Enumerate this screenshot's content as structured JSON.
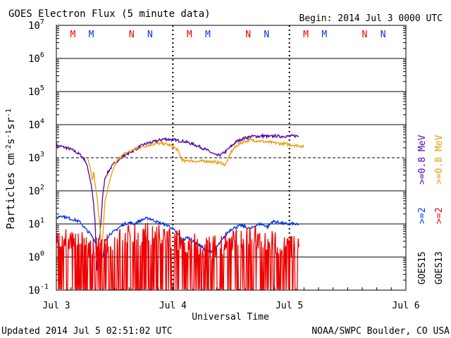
{
  "header": {
    "title": "GOES Electron Flux (5 minute data)",
    "begin": "Begin: 2014 Jul 3 0000 UTC"
  },
  "footer": {
    "updated": "Updated 2014 Jul  5 02:51:02 UTC",
    "credit": "NOAA/SWPC Boulder, CO USA"
  },
  "colors": {
    "goes15_high": "#5500aa",
    "goes13_high": "#ee9900",
    "goes15_low": "#0033ee",
    "goes13_low": "#ee0000",
    "marker_m": "#ee0000",
    "marker_n": "#0033ee"
  },
  "legend": {
    "goes15_label": "GOES15",
    "goes13_label": "GOES13",
    "goes15_high_label": ">=0.8 MeV",
    "goes13_high_label": ">=0.8 MeV",
    "goes15_low_label": ">=2",
    "goes13_low_label": ">=2",
    "position": "right"
  },
  "chart_data": {
    "type": "line",
    "title": "GOES Electron Flux (5 minute data)",
    "xlabel": "Universal Time",
    "ylabel": "Particles cm-2s-1sr-1",
    "ylabel_parts": [
      "Particles cm",
      "-2",
      "s",
      "-1",
      "sr",
      "-1"
    ],
    "x_unit": "hours since 2014 Jul 3 0000 UTC",
    "xlim": [
      0,
      72
    ],
    "x_ticks": [
      {
        "value": 0,
        "label": "Jul 3"
      },
      {
        "value": 24,
        "label": "Jul 4"
      },
      {
        "value": 48,
        "label": "Jul 5"
      },
      {
        "value": 72,
        "label": "Jul 6"
      }
    ],
    "yscale": "log",
    "ylim_exponent": [
      -1,
      7
    ],
    "y_ticks": [
      {
        "exp": -1,
        "base": "10",
        "sup": "-1"
      },
      {
        "exp": 0,
        "base": "10",
        "sup": "0"
      },
      {
        "exp": 1,
        "base": "10",
        "sup": "1"
      },
      {
        "exp": 2,
        "base": "10",
        "sup": "2"
      },
      {
        "exp": 3,
        "base": "10",
        "sup": "3"
      },
      {
        "exp": 4,
        "base": "10",
        "sup": "4"
      },
      {
        "exp": 5,
        "base": "10",
        "sup": "5"
      },
      {
        "exp": 6,
        "base": "10",
        "sup": "6"
      },
      {
        "exp": 7,
        "base": "10",
        "sup": "7"
      }
    ],
    "grid": true,
    "threshold": {
      "value": 1000,
      "style": "dashed"
    },
    "day_boundaries": [
      24,
      48
    ],
    "markers": [
      {
        "label": "M",
        "hour": 3.4,
        "color": "#ee0000"
      },
      {
        "label": "M",
        "hour": 7.2,
        "color": "#0033ee"
      },
      {
        "label": "N",
        "hour": 15.5,
        "color": "#ee0000"
      },
      {
        "label": "N",
        "hour": 19.3,
        "color": "#0033ee"
      },
      {
        "label": "M",
        "hour": 27.4,
        "color": "#ee0000"
      },
      {
        "label": "M",
        "hour": 31.2,
        "color": "#0033ee"
      },
      {
        "label": "N",
        "hour": 39.5,
        "color": "#ee0000"
      },
      {
        "label": "N",
        "hour": 43.3,
        "color": "#0033ee"
      },
      {
        "label": "M",
        "hour": 51.4,
        "color": "#ee0000"
      },
      {
        "label": "M",
        "hour": 55.2,
        "color": "#0033ee"
      },
      {
        "label": "N",
        "hour": 63.5,
        "color": "#ee0000"
      },
      {
        "label": "N",
        "hour": 67.3,
        "color": "#0033ee"
      }
    ],
    "series": [
      {
        "name": "GOES15 >=0.8 MeV",
        "color": "#5500aa",
        "style": "line",
        "points": [
          [
            0,
            2300
          ],
          [
            1,
            2200
          ],
          [
            2,
            2000
          ],
          [
            3,
            1800
          ],
          [
            4,
            1500
          ],
          [
            5,
            1200
          ],
          [
            6,
            800
          ],
          [
            6.6,
            400
          ],
          [
            7.2,
            150
          ],
          [
            7.6,
            50
          ],
          [
            8,
            10
          ],
          [
            8.3,
            0.3
          ],
          [
            8.6,
            2
          ],
          [
            9,
            5
          ],
          [
            9.5,
            60
          ],
          [
            10,
            250
          ],
          [
            11,
            450
          ],
          [
            12,
            700
          ],
          [
            13,
            900
          ],
          [
            14,
            1200
          ],
          [
            15,
            1400
          ],
          [
            16,
            1700
          ],
          [
            17,
            2100
          ],
          [
            18,
            2500
          ],
          [
            19,
            2800
          ],
          [
            20,
            3000
          ],
          [
            21,
            3300
          ],
          [
            22,
            3700
          ],
          [
            23,
            3600
          ],
          [
            24,
            3500
          ],
          [
            25,
            3300
          ],
          [
            26,
            3200
          ],
          [
            27,
            2900
          ],
          [
            28,
            2600
          ],
          [
            29,
            2300
          ],
          [
            30,
            2000
          ],
          [
            31,
            1700
          ],
          [
            32,
            1400
          ],
          [
            33,
            1150
          ],
          [
            34,
            1250
          ],
          [
            35,
            1600
          ],
          [
            36,
            2200
          ],
          [
            37,
            3000
          ],
          [
            38,
            3600
          ],
          [
            39,
            4000
          ],
          [
            40,
            4300
          ],
          [
            41,
            4500
          ],
          [
            42,
            4400
          ],
          [
            42.5,
            4600
          ],
          [
            44,
            4300
          ],
          [
            45,
            4600
          ],
          [
            46,
            4400
          ],
          [
            47,
            4500
          ],
          [
            48,
            4400
          ],
          [
            49,
            4600
          ],
          [
            50,
            4500
          ]
        ]
      },
      {
        "name": "GOES13 >=0.8 MeV",
        "color": "#ee9900",
        "style": "line",
        "points": [
          [
            6.5,
            1000
          ],
          [
            7,
            500
          ],
          [
            7.4,
            220
          ],
          [
            7.7,
            350
          ],
          [
            8,
            150
          ],
          [
            8.4,
            60
          ],
          [
            8.7,
            20
          ],
          [
            9,
            8
          ],
          [
            9.2,
            2
          ],
          [
            9.4,
            2
          ],
          [
            9.6,
            5
          ],
          [
            10,
            50
          ],
          [
            11,
            200
          ],
          [
            12,
            600
          ],
          [
            13,
            1000
          ],
          [
            14,
            1300
          ],
          [
            15,
            1500
          ],
          [
            16,
            1800
          ],
          [
            17,
            2000
          ],
          [
            18,
            2200
          ],
          [
            19,
            2400
          ],
          [
            20,
            2600
          ],
          [
            21,
            2700
          ],
          [
            22,
            2700
          ],
          [
            23,
            2500
          ],
          [
            24,
            2200
          ],
          [
            25,
            1700
          ],
          [
            25.8,
            900
          ],
          [
            26.5,
            750
          ],
          [
            27,
            850
          ],
          [
            28,
            800
          ],
          [
            29,
            770
          ],
          [
            30,
            780
          ],
          [
            31,
            800
          ],
          [
            32,
            750
          ],
          [
            33,
            730
          ],
          [
            34,
            700
          ],
          [
            34.8,
            600
          ],
          [
            35.5,
            1000
          ],
          [
            36,
            1500
          ],
          [
            37,
            2200
          ],
          [
            38,
            2800
          ],
          [
            39,
            3200
          ],
          [
            40,
            3400
          ],
          [
            41,
            3300
          ],
          [
            42,
            3200
          ],
          [
            43,
            3000
          ],
          [
            44,
            2900
          ],
          [
            45,
            2800
          ],
          [
            46,
            2700
          ],
          [
            47,
            2600
          ],
          [
            48,
            2500
          ],
          [
            49,
            2400
          ],
          [
            50,
            2300
          ],
          [
            51,
            2200
          ]
        ]
      },
      {
        "name": "GOES15 >=2 MeV",
        "color": "#0033ee",
        "style": "line",
        "points": [
          [
            0,
            15
          ],
          [
            1,
            18
          ],
          [
            2,
            16
          ],
          [
            3,
            14
          ],
          [
            4,
            13
          ],
          [
            5,
            11
          ],
          [
            6,
            7
          ],
          [
            7,
            5
          ],
          [
            8,
            3
          ],
          [
            9,
            0.6
          ],
          [
            9.6,
            1
          ],
          [
            10,
            3
          ],
          [
            11,
            5
          ],
          [
            12,
            6
          ],
          [
            13,
            8
          ],
          [
            14,
            10
          ],
          [
            15,
            11
          ],
          [
            16,
            10
          ],
          [
            17,
            12
          ],
          [
            18,
            14
          ],
          [
            19,
            15
          ],
          [
            20,
            13
          ],
          [
            21,
            11
          ],
          [
            22,
            10
          ],
          [
            23,
            9
          ],
          [
            24,
            7
          ],
          [
            25,
            5
          ],
          [
            26,
            3
          ],
          [
            27,
            4
          ],
          [
            28,
            3
          ],
          [
            29,
            2.5
          ],
          [
            30,
            2
          ],
          [
            31,
            1.5
          ],
          [
            32,
            1.5
          ],
          [
            33,
            2
          ],
          [
            34,
            3
          ],
          [
            35,
            5
          ],
          [
            36,
            7
          ],
          [
            37,
            8
          ],
          [
            38,
            9
          ],
          [
            39,
            8
          ],
          [
            40,
            7
          ],
          [
            41,
            9
          ],
          [
            42,
            10
          ],
          [
            43,
            9
          ],
          [
            43.5,
            8
          ],
          [
            44.5,
            12
          ],
          [
            46,
            11
          ],
          [
            47,
            10
          ],
          [
            48,
            10
          ],
          [
            49,
            10
          ],
          [
            50,
            9
          ]
        ]
      },
      {
        "name": "GOES13 >=2 MeV",
        "color": "#ee0000",
        "style": "noisy",
        "points": [
          [
            0,
            4
          ],
          [
            2,
            3.5
          ],
          [
            4,
            3
          ],
          [
            6,
            2.5
          ],
          [
            8,
            1.8
          ],
          [
            10,
            2
          ],
          [
            12,
            3
          ],
          [
            14,
            4
          ],
          [
            16,
            5
          ],
          [
            18,
            5
          ],
          [
            20,
            5
          ],
          [
            22,
            4
          ],
          [
            24,
            3.5
          ],
          [
            26,
            3
          ],
          [
            28,
            2.5
          ],
          [
            30,
            2
          ],
          [
            32,
            2
          ],
          [
            34,
            2.5
          ],
          [
            36,
            3
          ],
          [
            38,
            4
          ],
          [
            40,
            4
          ],
          [
            42,
            3.5
          ],
          [
            44,
            3
          ],
          [
            46,
            2.5
          ],
          [
            48,
            2
          ],
          [
            50,
            2.5
          ]
        ]
      }
    ]
  }
}
